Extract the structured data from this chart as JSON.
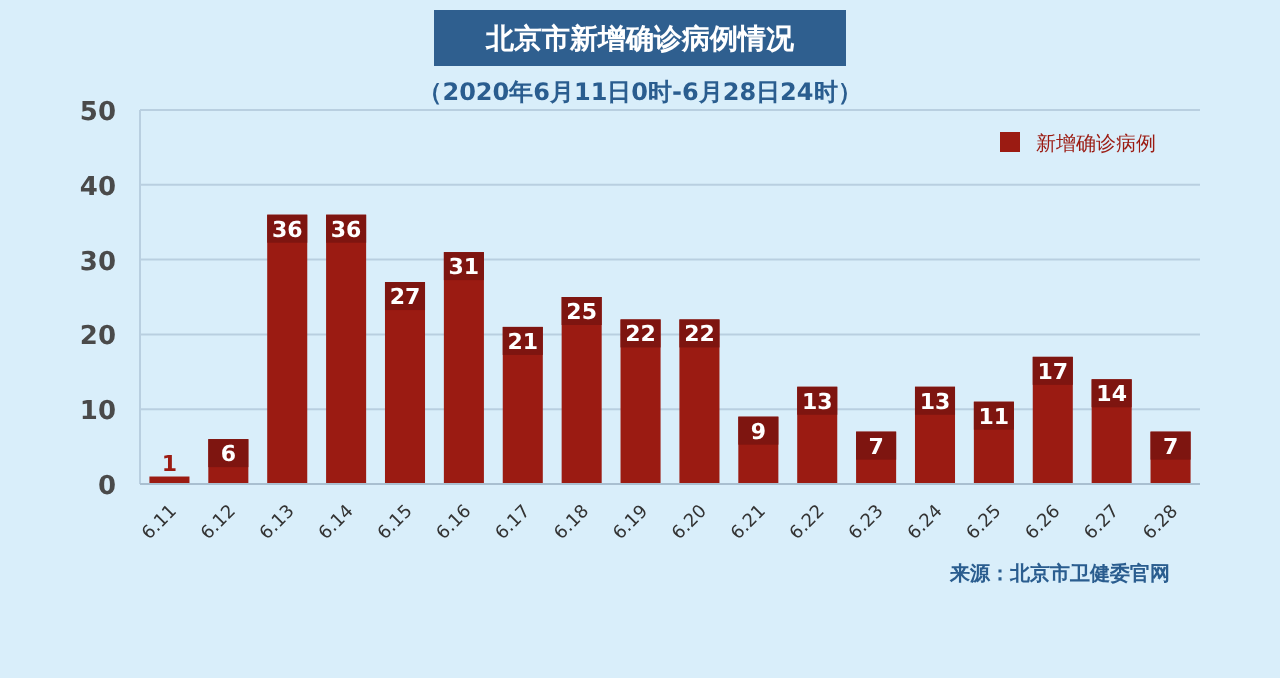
{
  "chart_data": {
    "type": "bar",
    "title": "北京市新增确诊病例情况",
    "subtitle": "（2020年6月11日0时-6月28日24时）",
    "categories": [
      "6.11",
      "6.12",
      "6.13",
      "6.14",
      "6.15",
      "6.16",
      "6.17",
      "6.18",
      "6.19",
      "6.20",
      "6.21",
      "6.22",
      "6.23",
      "6.24",
      "6.25",
      "6.26",
      "6.27",
      "6.28"
    ],
    "series": [
      {
        "name": "新增确诊病例",
        "color": "#9b1b12",
        "values": [
          1,
          6,
          36,
          36,
          27,
          31,
          21,
          25,
          22,
          22,
          9,
          13,
          7,
          13,
          11,
          17,
          14,
          7
        ]
      }
    ],
    "ylim": [
      0,
      50
    ],
    "yticks": [
      0,
      10,
      20,
      30,
      40,
      50
    ],
    "grid": "y",
    "legend": "top right",
    "data_labels": true,
    "annotations": [
      "来源：北京市卫健委官网"
    ]
  }
}
